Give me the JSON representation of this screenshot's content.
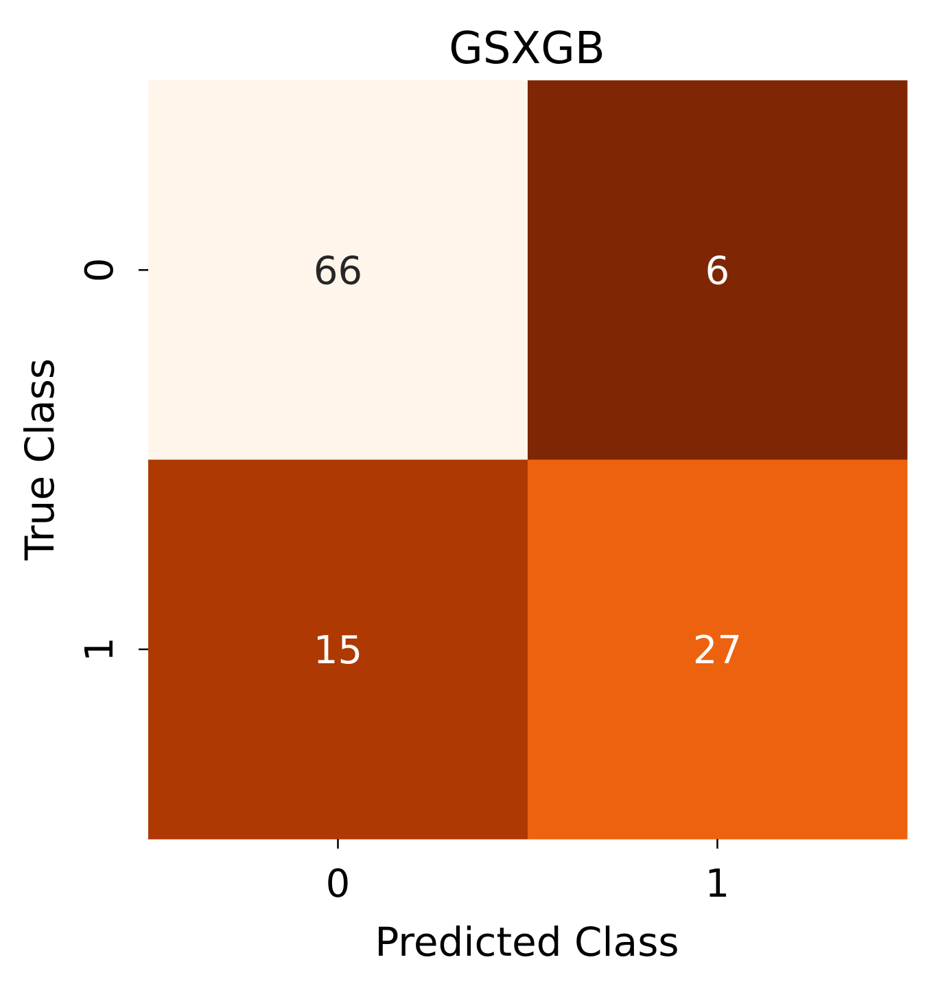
{
  "chart_data": {
    "type": "heatmap",
    "title": "GSXGB",
    "xlabel": "Predicted Class",
    "ylabel": "True Class",
    "x_categories": [
      "0",
      "1"
    ],
    "y_categories": [
      "0",
      "1"
    ],
    "values": [
      [
        66,
        6
      ],
      [
        15,
        27
      ]
    ],
    "colormap": "Oranges",
    "colorbar": false,
    "colors": {
      "cells": [
        [
          "#fff5eb",
          "#7f2704"
        ],
        [
          "#ae3903",
          "#ec620f"
        ]
      ],
      "light_cell_text": "#262626",
      "dark_cell_text": "#ffffff"
    }
  }
}
